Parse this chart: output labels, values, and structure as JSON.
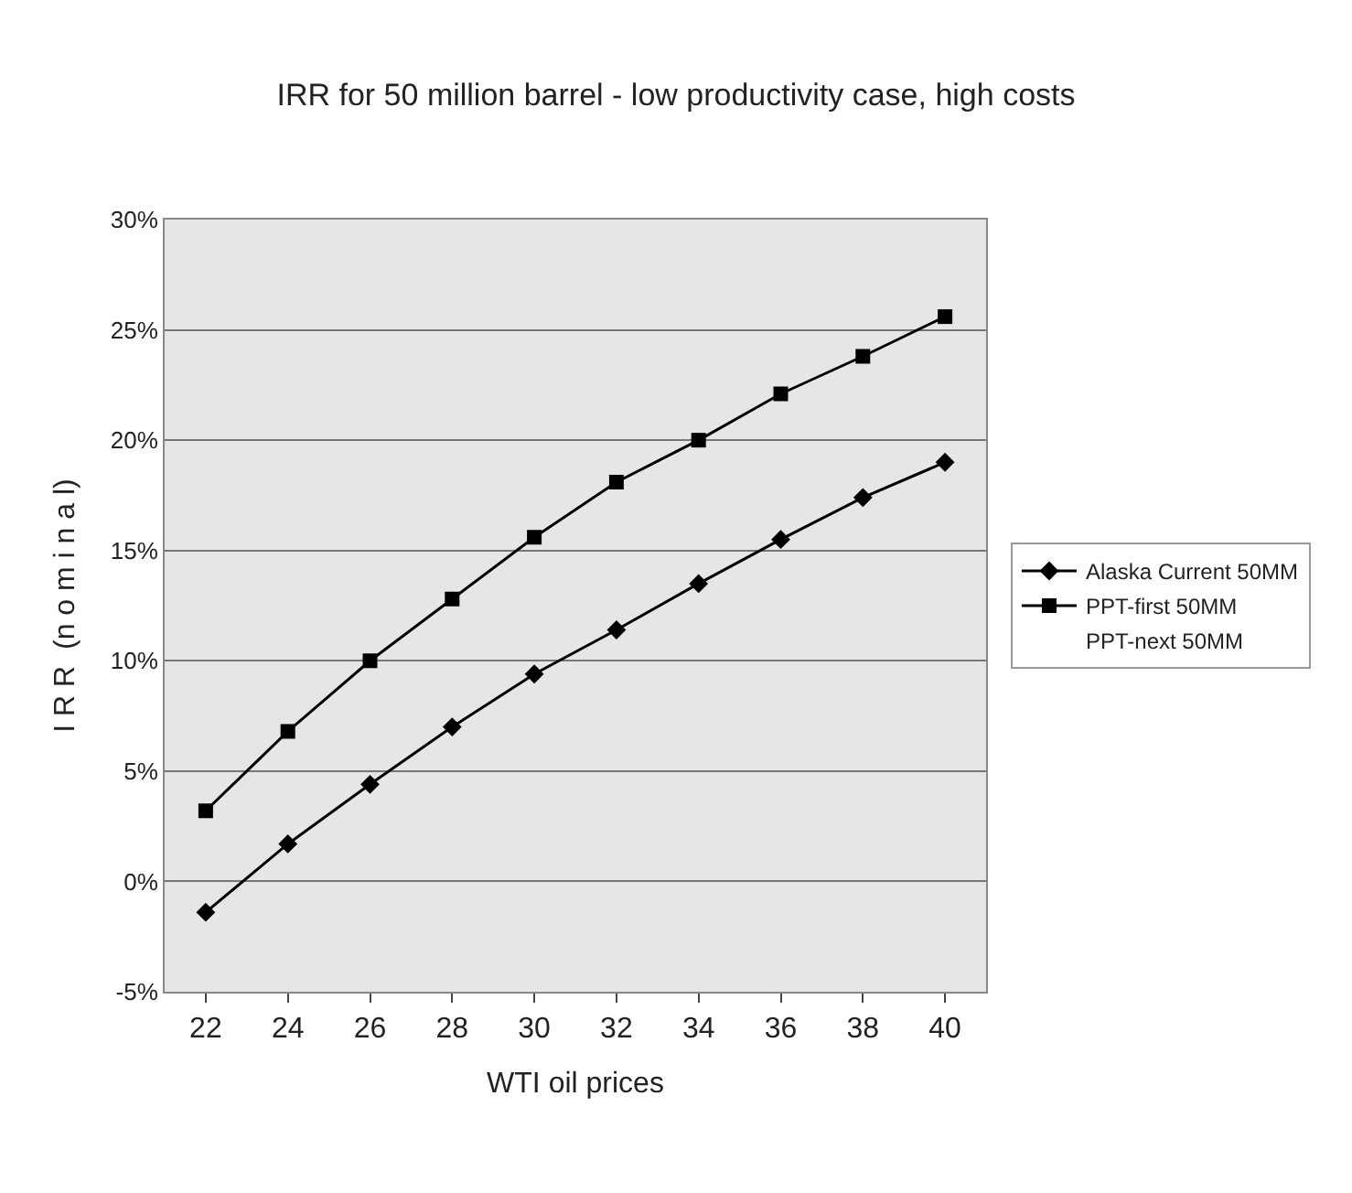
{
  "chart_data": {
    "type": "line",
    "title": "IRR for 50 million barrel - low productivity case, high costs",
    "xlabel": "WTI oil prices",
    "ylabel": "I R R  (n o m i n a l)",
    "categories": [
      "22",
      "24",
      "26",
      "28",
      "30",
      "32",
      "34",
      "36",
      "38",
      "40"
    ],
    "series": [
      {
        "name": "Alaska Current 50MM",
        "color": "#000000",
        "marker": "diamond",
        "values": [
          -1.4,
          1.7,
          4.4,
          7.0,
          9.4,
          11.4,
          13.5,
          15.5,
          17.4,
          19.0
        ]
      },
      {
        "name": "PPT-first 50MM",
        "color": "#000000",
        "marker": "square",
        "values": [
          3.2,
          6.8,
          10.0,
          12.8,
          15.6,
          18.1,
          20.0,
          22.1,
          23.8,
          25.6
        ]
      },
      {
        "name": "PPT-next 50MM",
        "marker": "none",
        "values": [
          null,
          null,
          null,
          null,
          null,
          null,
          null,
          null,
          null,
          null
        ]
      }
    ],
    "ylim": [
      -5,
      30
    ],
    "yticks": [
      {
        "value": -5,
        "label": "-5%"
      },
      {
        "value": 0,
        "label": "0%"
      },
      {
        "value": 5,
        "label": "5%"
      },
      {
        "value": 10,
        "label": "10%"
      },
      {
        "value": 15,
        "label": "15%"
      },
      {
        "value": 20,
        "label": "20%"
      },
      {
        "value": 25,
        "label": "25%"
      },
      {
        "value": 30,
        "label": "30%"
      }
    ],
    "grid": "y",
    "legend": "right"
  }
}
